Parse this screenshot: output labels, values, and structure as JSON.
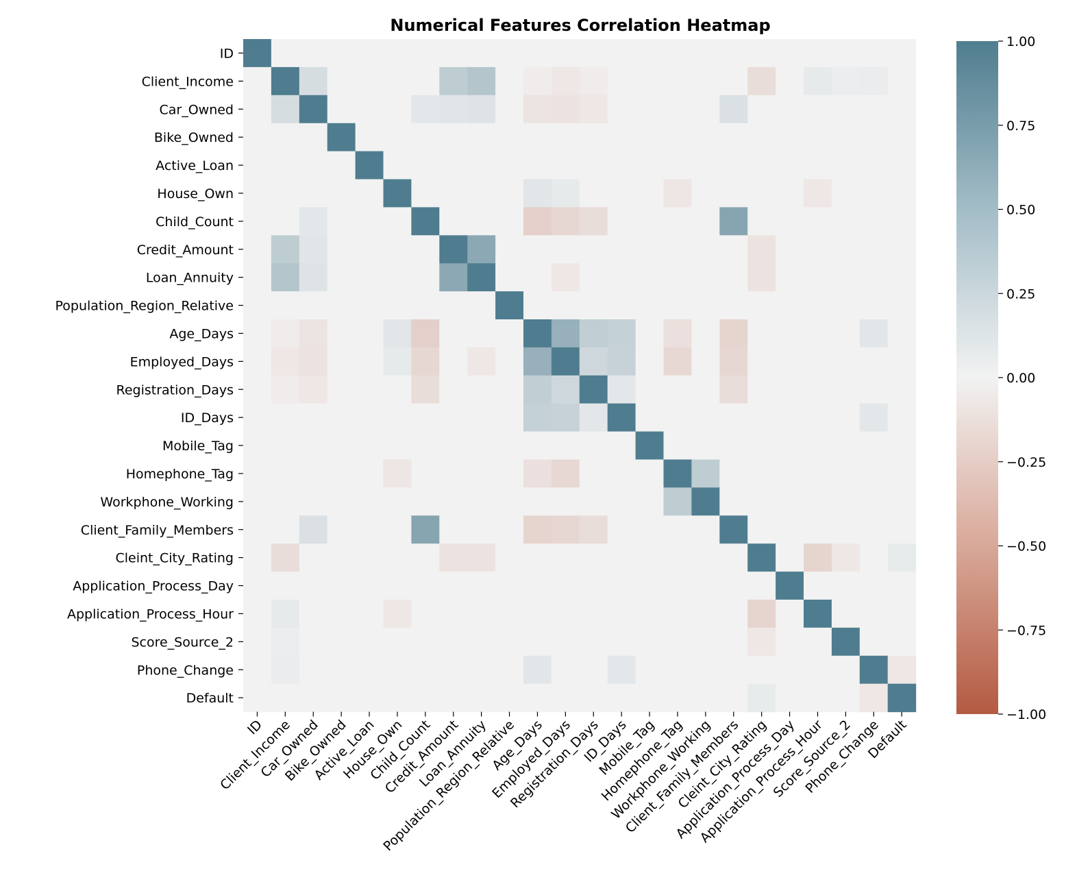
{
  "chart_data": {
    "type": "heatmap",
    "title": "Numerical Features Correlation Heatmap",
    "xlabel": "",
    "ylabel": "",
    "labels": [
      "ID",
      "Client_Income",
      "Car_Owned",
      "Bike_Owned",
      "Active_Loan",
      "House_Own",
      "Child_Count",
      "Credit_Amount",
      "Loan_Annuity",
      "Population_Region_Relative",
      "Age_Days",
      "Employed_Days",
      "Registration_Days",
      "ID_Days",
      "Mobile_Tag",
      "Homephone_Tag",
      "Workphone_Working",
      "Client_Family_Members",
      "Cleint_City_Rating",
      "Application_Process_Day",
      "Application_Process_Hour",
      "Score_Source_2",
      "Phone_Change",
      "Default"
    ],
    "colorbar": {
      "range": [
        -1,
        1
      ],
      "ticks": [
        "1.00",
        "0.75",
        "0.50",
        "0.25",
        "0.00",
        "−0.25",
        "−0.50",
        "−0.75",
        "−1.00"
      ],
      "low_color": "#b45a42",
      "mid_color": "#f2f2f2",
      "high_color": "#4f7d8f"
    },
    "notable_values": [
      {
        "a": "Client_Income",
        "b": "Car_Owned",
        "value": 0.18
      },
      {
        "a": "Client_Income",
        "b": "Credit_Amount",
        "value": 0.32
      },
      {
        "a": "Client_Income",
        "b": "Loan_Annuity",
        "value": 0.38
      },
      {
        "a": "Client_Income",
        "b": "Age_Days",
        "value": -0.04
      },
      {
        "a": "Client_Income",
        "b": "Employed_Days",
        "value": -0.07
      },
      {
        "a": "Client_Income",
        "b": "Registration_Days",
        "value": -0.04
      },
      {
        "a": "Client_Income",
        "b": "Cleint_City_Rating",
        "value": -0.14
      },
      {
        "a": "Client_Income",
        "b": "Application_Process_Hour",
        "value": 0.07
      },
      {
        "a": "Client_Income",
        "b": "Score_Source_2",
        "value": 0.04
      },
      {
        "a": "Client_Income",
        "b": "Phone_Change",
        "value": 0.05
      },
      {
        "a": "Car_Owned",
        "b": "Child_Count",
        "value": 0.09
      },
      {
        "a": "Car_Owned",
        "b": "Credit_Amount",
        "value": 0.11
      },
      {
        "a": "Car_Owned",
        "b": "Loan_Annuity",
        "value": 0.12
      },
      {
        "a": "Car_Owned",
        "b": "Age_Days",
        "value": -0.09
      },
      {
        "a": "Car_Owned",
        "b": "Employed_Days",
        "value": -0.1
      },
      {
        "a": "Car_Owned",
        "b": "Registration_Days",
        "value": -0.07
      },
      {
        "a": "Car_Owned",
        "b": "Client_Family_Members",
        "value": 0.15
      },
      {
        "a": "House_Own",
        "b": "Age_Days",
        "value": 0.1
      },
      {
        "a": "House_Own",
        "b": "Employed_Days",
        "value": 0.07
      },
      {
        "a": "House_Own",
        "b": "Homephone_Tag",
        "value": -0.08
      },
      {
        "a": "House_Own",
        "b": "Application_Process_Hour",
        "value": -0.07
      },
      {
        "a": "Child_Count",
        "b": "Age_Days",
        "value": -0.23
      },
      {
        "a": "Child_Count",
        "b": "Employed_Days",
        "value": -0.18
      },
      {
        "a": "Child_Count",
        "b": "Registration_Days",
        "value": -0.14
      },
      {
        "a": "Child_Count",
        "b": "Client_Family_Members",
        "value": 0.66
      },
      {
        "a": "Credit_Amount",
        "b": "Loan_Annuity",
        "value": 0.63
      },
      {
        "a": "Credit_Amount",
        "b": "Cleint_City_Rating",
        "value": -0.1
      },
      {
        "a": "Loan_Annuity",
        "b": "Employed_Days",
        "value": -0.07
      },
      {
        "a": "Loan_Annuity",
        "b": "Cleint_City_Rating",
        "value": -0.1
      },
      {
        "a": "Age_Days",
        "b": "Employed_Days",
        "value": 0.56
      },
      {
        "a": "Age_Days",
        "b": "Registration_Days",
        "value": 0.3
      },
      {
        "a": "Age_Days",
        "b": "ID_Days",
        "value": 0.28
      },
      {
        "a": "Age_Days",
        "b": "Homephone_Tag",
        "value": -0.12
      },
      {
        "a": "Age_Days",
        "b": "Client_Family_Members",
        "value": -0.2
      },
      {
        "a": "Age_Days",
        "b": "Phone_Change",
        "value": 0.1
      },
      {
        "a": "Employed_Days",
        "b": "Registration_Days",
        "value": 0.22
      },
      {
        "a": "Employed_Days",
        "b": "ID_Days",
        "value": 0.27
      },
      {
        "a": "Employed_Days",
        "b": "Homephone_Tag",
        "value": -0.17
      },
      {
        "a": "Employed_Days",
        "b": "Client_Family_Members",
        "value": -0.18
      },
      {
        "a": "Registration_Days",
        "b": "ID_Days",
        "value": 0.09
      },
      {
        "a": "Registration_Days",
        "b": "Client_Family_Members",
        "value": -0.14
      },
      {
        "a": "Homephone_Tag",
        "b": "Workphone_Working",
        "value": 0.32
      },
      {
        "a": "Cleint_City_Rating",
        "b": "Application_Process_Hour",
        "value": -0.2
      },
      {
        "a": "Cleint_City_Rating",
        "b": "Score_Source_2",
        "value": -0.07
      },
      {
        "a": "Cleint_City_Rating",
        "b": "Default",
        "value": 0.06
      },
      {
        "a": "ID_Days",
        "b": "Phone_Change",
        "value": 0.09
      },
      {
        "a": "Phone_Change",
        "b": "Default",
        "value": -0.07
      }
    ]
  }
}
